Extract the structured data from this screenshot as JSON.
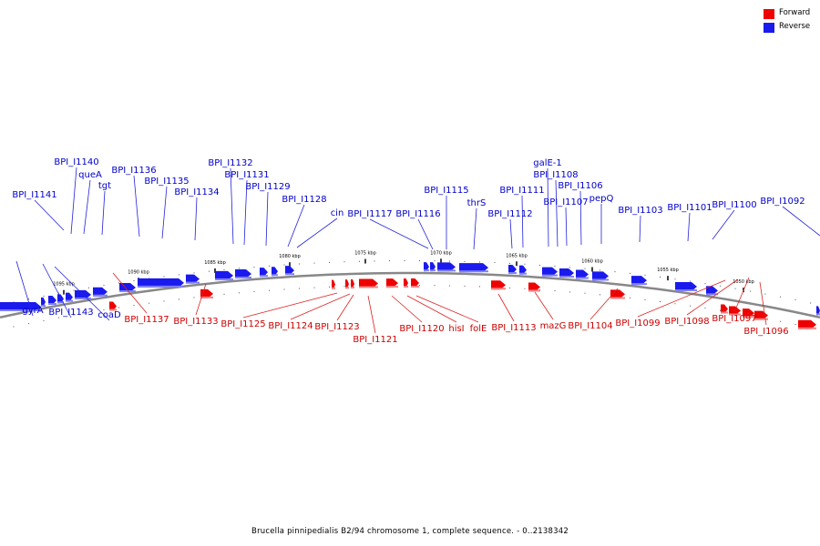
{
  "legend": {
    "forward_label": "Forward",
    "reverse_label": "Reverse",
    "forward_color": "#ee0000",
    "reverse_color": "#1a1aee"
  },
  "footer": "Brucella pinnipedialis B2/94 chromosome 1, complete sequence. - 0..2138342",
  "scale": {
    "unit": "kbp",
    "ticks": [
      "1095 kbp",
      "1090 kbp",
      "1085 kbp",
      "1080 kbp",
      "1075 kbp",
      "1070 kbp",
      "1065 kbp",
      "1060 kbp",
      "1055 kbp",
      "1050 kbp"
    ]
  },
  "colors": {
    "backbone": "#888888",
    "forward_leader": "#dd2222",
    "reverse_leader": "#2222dd",
    "forward_text": "#cc0000",
    "reverse_text": "#0000cc"
  },
  "reverse_labels": [
    "BPI_I1141",
    "BPI_I1140",
    "queA",
    "tgt",
    "BPI_I1136",
    "BPI_I1135",
    "BPI_I1134",
    "BPI_I1132",
    "BPI_I1131",
    "BPI_I1129",
    "BPI_I1128",
    "cin",
    "BPI_I1117",
    "BPI_I1116",
    "BPI_I1115",
    "thrS",
    "BPI_I1112",
    "BPI_I1111",
    "galE-1",
    "BPI_I1108",
    "BPI_I1107",
    "BPI_I1106",
    "pepQ",
    "BPI_I1103",
    "BPI_I1101",
    "BPI_I1100",
    "BPI_I1092",
    "gyrA",
    "BPI_I1143",
    "coaD"
  ],
  "forward_labels": [
    "BPI_I1137",
    "BPI_I1133",
    "BPI_I1125",
    "BPI_I1124",
    "BPI_I1123",
    "BPI_I1121",
    "BPI_I1120",
    "hisI",
    "folE",
    "BPI_I1113",
    "mazG",
    "BPI_I1104",
    "BPI_I1099",
    "BPI_I1098",
    "BPI_I1097",
    "BPI_I1096"
  ]
}
